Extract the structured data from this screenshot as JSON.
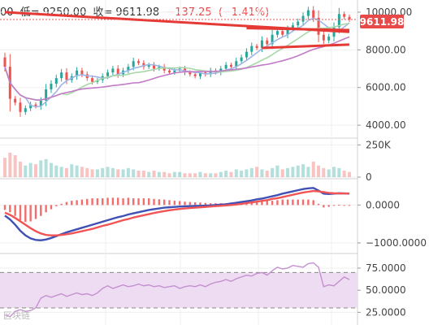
{
  "header": {
    "open_fragment": "00",
    "low_label": "低=",
    "low_value": "9250.00",
    "close_label": "收=",
    "close_value": "9611.98",
    "change": "−137.25",
    "change_pct": "(−1.41%)"
  },
  "price_tag": "9611.98",
  "watermark": "区块链",
  "colors": {
    "up": "#26a69a",
    "down": "#ef5350",
    "ma_blue": "#9fb6e6",
    "ma_green": "#a8d8a8",
    "ma_purple": "#c27bc7",
    "trend": "#e53935",
    "macd_line": "#3f51b5",
    "signal_line": "#f05454",
    "rsi_fill": "#eedcf2",
    "rsi_line": "#c490cf"
  },
  "chart_data": [
    {
      "type": "candlestick",
      "panel": "price",
      "y_ticks": [
        "10000.00",
        "8000.00",
        "6000.00",
        "4000.00"
      ],
      "y_tick_values": [
        10000,
        8000,
        6000,
        4000
      ],
      "ylim": [
        3400,
        10300
      ],
      "last_price": 9611.98,
      "closes": [
        7100,
        5400,
        5200,
        4700,
        4900,
        5100,
        5000,
        5300,
        5900,
        6200,
        6500,
        6800,
        6400,
        6600,
        6900,
        6700,
        6500,
        6300,
        6400,
        6600,
        6800,
        7000,
        6700,
        6900,
        7100,
        7400,
        7300,
        7100,
        7200,
        7000,
        7100,
        6900,
        6800,
        6900,
        7000,
        6800,
        6700,
        6600,
        6800,
        6700,
        6900,
        6800,
        7000,
        7200,
        7100,
        7400,
        7600,
        7900,
        8200,
        8100,
        8500,
        8300,
        8800,
        9000,
        8800,
        9100,
        9300,
        9500,
        9800,
        10100,
        9700,
        8800,
        8500,
        8700,
        9200,
        9900,
        9750,
        9611.98
      ],
      "overlays": [
        {
          "name": "ma-fast",
          "color": "ma_blue"
        },
        {
          "name": "ma-mid",
          "color": "ma_green"
        },
        {
          "name": "ma-slow",
          "color": "ma_purple"
        }
      ],
      "trendlines": [
        {
          "from": [
            0,
            10000
          ],
          "to": [
            67,
            8950
          ]
        },
        {
          "from": [
            47,
            9150
          ],
          "to": [
            67,
            9050
          ]
        },
        {
          "from": [
            50,
            8100
          ],
          "to": [
            67,
            8280
          ]
        }
      ]
    },
    {
      "type": "bar",
      "panel": "volume",
      "y_ticks": [
        "250K",
        "0"
      ],
      "y_tick_values": [
        250000,
        0
      ],
      "ylim": [
        0,
        290000
      ],
      "values": [
        150000,
        190000,
        170000,
        120000,
        90000,
        110000,
        100000,
        130000,
        140000,
        110000,
        90000,
        80000,
        70000,
        100000,
        90000,
        80000,
        70000,
        60000,
        60000,
        70000,
        80000,
        70000,
        60000,
        60000,
        70000,
        60000,
        50000,
        50000,
        40000,
        50000,
        40000,
        40000,
        30000,
        40000,
        40000,
        30000,
        30000,
        30000,
        40000,
        30000,
        30000,
        30000,
        40000,
        50000,
        40000,
        60000,
        50000,
        60000,
        70000,
        80000,
        60000,
        50000,
        70000,
        90000,
        60000,
        70000,
        80000,
        90000,
        100000,
        80000,
        120000,
        90000,
        70000,
        60000,
        80000,
        70000,
        50000,
        40000
      ]
    },
    {
      "type": "line",
      "panel": "macd",
      "y_ticks": [
        "0.0000",
        "−1000.0000"
      ],
      "y_tick_values": [
        0,
        -1000
      ],
      "ylim": [
        -1150,
        650
      ],
      "series": [
        {
          "color": "macd_line",
          "values": [
            -280,
            -380,
            -520,
            -680,
            -800,
            -880,
            -920,
            -930,
            -910,
            -870,
            -820,
            -770,
            -720,
            -680,
            -640,
            -600,
            -560,
            -520,
            -480,
            -440,
            -400,
            -360,
            -320,
            -290,
            -250,
            -220,
            -190,
            -160,
            -130,
            -110,
            -90,
            -70,
            -60,
            -50,
            -40,
            -35,
            -30,
            -25,
            -20,
            -15,
            -10,
            0,
            10,
            20,
            40,
            60,
            80,
            100,
            120,
            150,
            170,
            200,
            230,
            260,
            300,
            330,
            360,
            390,
            420,
            440,
            450,
            380,
            300,
            290,
            300,
            310,
            305,
            300
          ]
        },
        {
          "color": "signal_line",
          "values": [
            -200,
            -260,
            -340,
            -430,
            -520,
            -610,
            -690,
            -750,
            -790,
            -800,
            -800,
            -790,
            -770,
            -750,
            -720,
            -690,
            -660,
            -630,
            -590,
            -550,
            -520,
            -480,
            -440,
            -400,
            -370,
            -330,
            -300,
            -270,
            -240,
            -210,
            -185,
            -160,
            -140,
            -120,
            -105,
            -90,
            -80,
            -70,
            -60,
            -50,
            -40,
            -30,
            -20,
            -10,
            0,
            15,
            30,
            50,
            70,
            90,
            110,
            130,
            160,
            180,
            210,
            240,
            270,
            300,
            330,
            350,
            370,
            360,
            340,
            320,
            310,
            305,
            305,
            305
          ]
        }
      ]
    },
    {
      "type": "line",
      "panel": "rsi",
      "y_ticks": [
        "75.0000",
        "50.0000",
        "25.0000"
      ],
      "y_tick_values": [
        75,
        50,
        25
      ],
      "ylim": [
        18,
        86
      ],
      "band": [
        30,
        70
      ],
      "series": [
        {
          "color": "rsi_line",
          "values": [
            22,
            20,
            26,
            28,
            26,
            27,
            30,
            41,
            44,
            42,
            44,
            46,
            43,
            45,
            47,
            45,
            46,
            44,
            47,
            52,
            55,
            52,
            54,
            56,
            54,
            55,
            57,
            55,
            56,
            54,
            55,
            53,
            54,
            55,
            52,
            54,
            55,
            54,
            56,
            54,
            57,
            59,
            60,
            62,
            60,
            63,
            65,
            67,
            66,
            69,
            70,
            67,
            72,
            76,
            74,
            75,
            78,
            77,
            76,
            80,
            81,
            76,
            54,
            56,
            55,
            60,
            65,
            62
          ]
        }
      ]
    }
  ]
}
